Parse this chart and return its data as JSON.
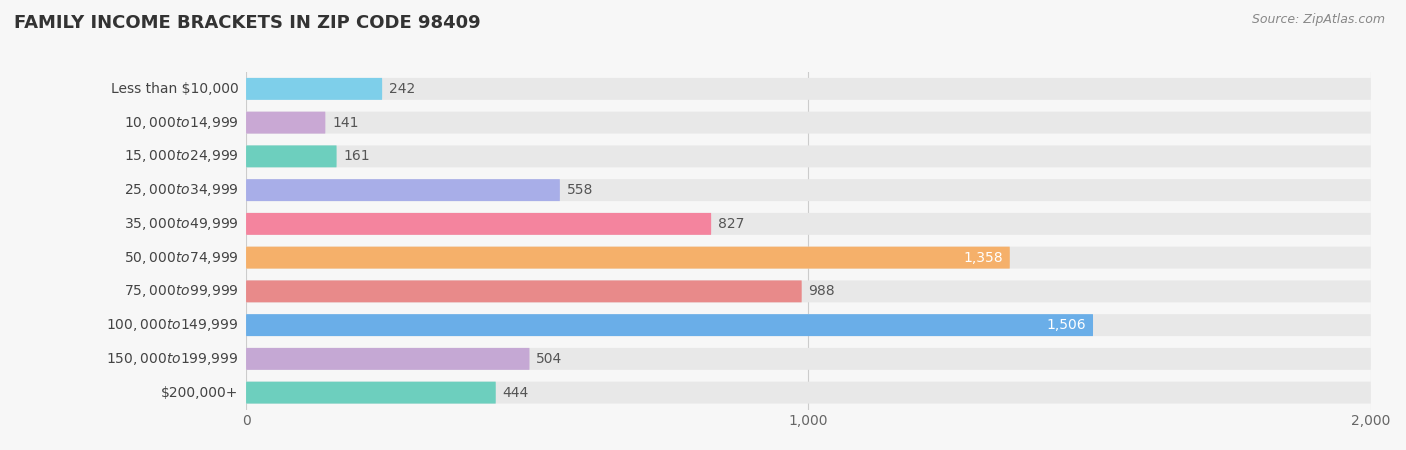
{
  "title": "FAMILY INCOME BRACKETS IN ZIP CODE 98409",
  "source": "Source: ZipAtlas.com",
  "categories": [
    "Less than $10,000",
    "$10,000 to $14,999",
    "$15,000 to $24,999",
    "$25,000 to $34,999",
    "$35,000 to $49,999",
    "$50,000 to $74,999",
    "$75,000 to $99,999",
    "$100,000 to $149,999",
    "$150,000 to $199,999",
    "$200,000+"
  ],
  "values": [
    242,
    141,
    161,
    558,
    827,
    1358,
    988,
    1506,
    504,
    444
  ],
  "bar_colors": [
    "#7ecfea",
    "#c9a8d4",
    "#6dcfbe",
    "#a8aee8",
    "#f4849e",
    "#f5b06a",
    "#e88a8a",
    "#6aaee8",
    "#c5a8d4",
    "#6dcfbe"
  ],
  "value_inside": [
    false,
    false,
    false,
    false,
    false,
    true,
    false,
    true,
    false,
    false
  ],
  "value_inside_color": "#ffffff",
  "value_outside_color": "#555555",
  "xlim": [
    0,
    2000
  ],
  "xticks": [
    0,
    1000,
    2000
  ],
  "xtick_labels": [
    "0",
    "1,000",
    "2,000"
  ],
  "background_color": "#f7f7f7",
  "bar_background_color": "#e8e8e8",
  "title_fontsize": 13,
  "label_fontsize": 10,
  "value_fontsize": 10,
  "source_fontsize": 9
}
